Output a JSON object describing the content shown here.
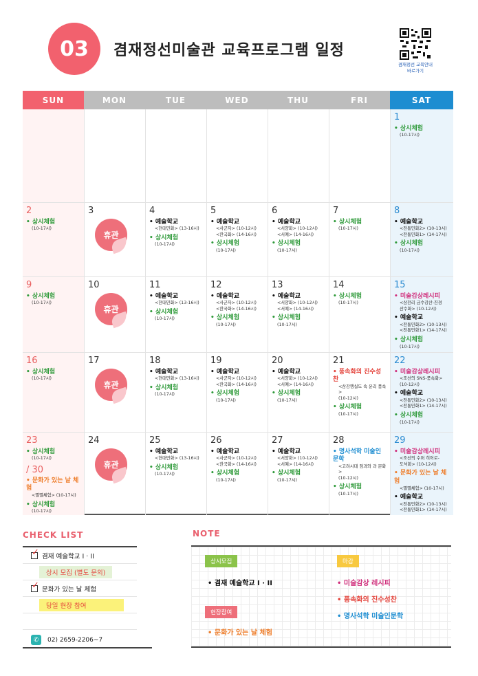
{
  "header": {
    "badge": "03",
    "title": "겸재정선미술관 교육프로그램 일정",
    "qr_caption": [
      "겸재정선 교육안내",
      "바로가기"
    ]
  },
  "colors": {
    "sun": "#f2616e",
    "weekday": "#bdbdbd",
    "sat": "#1d8dd1",
    "closed": "#ee6f7a",
    "check_title": "#e95f6d",
    "tag_green": "#8bc34a",
    "tag_yellow": "#f8c93f",
    "tag_pink": "#ee6f7a"
  },
  "calendar": {
    "days": [
      "SUN",
      "MON",
      "TUE",
      "WED",
      "THU",
      "FRI",
      "SAT"
    ],
    "weeks": [
      [
        {
          "date": ""
        },
        {
          "date": ""
        },
        {
          "date": ""
        },
        {
          "date": ""
        },
        {
          "date": ""
        },
        {
          "date": ""
        },
        {
          "date": "1",
          "events": [
            {
              "c": "green",
              "title": "• 상시체험",
              "lines": [
                "(10-17시)"
              ]
            }
          ]
        }
      ],
      [
        {
          "date": "2",
          "events": [
            {
              "c": "green",
              "title": "• 상시체험",
              "lines": [
                "(10-17시)"
              ]
            }
          ]
        },
        {
          "date": "3",
          "closed": "휴관"
        },
        {
          "date": "4",
          "events": [
            {
              "c": "black",
              "title": "• 예술학교",
              "lines": [
                "<현대민화> (13-16시)"
              ]
            },
            {
              "c": "green",
              "title": "• 상시체험",
              "lines": [
                "(10-17시)"
              ]
            }
          ]
        },
        {
          "date": "5",
          "events": [
            {
              "c": "black",
              "title": "• 예술학교",
              "lines": [
                "<사군자> (10-12시)",
                "<한국화> (14-16시)"
              ]
            },
            {
              "c": "green",
              "title": "• 상시체험",
              "lines": [
                "(10-17시)"
              ]
            }
          ]
        },
        {
          "date": "6",
          "events": [
            {
              "c": "black",
              "title": "• 예술학교",
              "lines": [
                "<서양화> (10-12시)",
                "<서예> (14-16시)"
              ]
            },
            {
              "c": "green",
              "title": "• 상시체험",
              "lines": [
                "(10-17시)"
              ]
            }
          ]
        },
        {
          "date": "7",
          "events": [
            {
              "c": "green",
              "title": "• 상시체험",
              "lines": [
                "(10-17시)"
              ]
            }
          ]
        },
        {
          "date": "8",
          "events": [
            {
              "c": "black",
              "title": "• 예술학교",
              "lines": [
                "<전통민화2> (10-13시)",
                "<전통민화1> (14-17시)"
              ]
            },
            {
              "c": "green",
              "title": "• 상시체험",
              "lines": [
                "(10-17시)"
              ]
            }
          ]
        }
      ],
      [
        {
          "date": "9",
          "events": [
            {
              "c": "green",
              "title": "• 상시체험",
              "lines": [
                "(10-17시)"
              ]
            }
          ]
        },
        {
          "date": "10",
          "closed": "휴관"
        },
        {
          "date": "11",
          "events": [
            {
              "c": "black",
              "title": "• 예술학교",
              "lines": [
                "<현대민화> (13-16시)"
              ]
            },
            {
              "c": "green",
              "title": "• 상시체험",
              "lines": [
                "(10-17시)"
              ]
            }
          ]
        },
        {
          "date": "12",
          "events": [
            {
              "c": "black",
              "title": "• 예술학교",
              "lines": [
                "<사군자> (10-12시)",
                "<한국화> (14-16시)"
              ]
            },
            {
              "c": "green",
              "title": "• 상시체험",
              "lines": [
                "(10-17시)"
              ]
            }
          ]
        },
        {
          "date": "13",
          "events": [
            {
              "c": "black",
              "title": "• 예술학교",
              "lines": [
                "<서양화> (10-12시)",
                "<서예> (14-16시)"
              ]
            },
            {
              "c": "green",
              "title": "• 상시체험",
              "lines": [
                "(10-17시)"
              ]
            }
          ]
        },
        {
          "date": "14",
          "events": [
            {
              "c": "green",
              "title": "• 상시체험",
              "lines": [
                "(10-17시)"
              ]
            }
          ]
        },
        {
          "date": "15",
          "events": [
            {
              "c": "pink",
              "title": "• 미술감상레시피",
              "lines": [
                "<삼천리 금수강산-진경",
                "산수화> (10-12시)"
              ]
            },
            {
              "c": "black",
              "title": "• 예술학교",
              "lines": [
                "<전통민화2> (10-13시)",
                "<전통민화1> (14-17시)"
              ]
            },
            {
              "c": "green",
              "title": "• 상시체험",
              "lines": [
                "(10-17시)"
              ]
            }
          ]
        }
      ],
      [
        {
          "date": "16",
          "events": [
            {
              "c": "green",
              "title": "• 상시체험",
              "lines": [
                "(10-17시)"
              ]
            }
          ]
        },
        {
          "date": "17",
          "closed": "휴관"
        },
        {
          "date": "18",
          "events": [
            {
              "c": "black",
              "title": "• 예술학교",
              "lines": [
                "<현대민화> (13-16시)"
              ]
            },
            {
              "c": "green",
              "title": "• 상시체험",
              "lines": [
                "(10-17시)"
              ]
            }
          ]
        },
        {
          "date": "19",
          "events": [
            {
              "c": "black",
              "title": "• 예술학교",
              "lines": [
                "<사군자> (10-12시)",
                "<한국화> (14-16시)"
              ]
            },
            {
              "c": "green",
              "title": "• 상시체험",
              "lines": [
                "(10-17시)"
              ]
            }
          ]
        },
        {
          "date": "20",
          "events": [
            {
              "c": "black",
              "title": "• 예술학교",
              "lines": [
                "<서양화> (10-12시)",
                "<서예> (14-16시)"
              ]
            },
            {
              "c": "green",
              "title": "• 상시체험",
              "lines": [
                "(10-17시)"
              ]
            }
          ]
        },
        {
          "date": "21",
          "events": [
            {
              "c": "red",
              "title": "• 풍속화의 진수성찬",
              "lines": [
                "<삼강행실도 속 윤리 풍속>",
                "(10-12시)"
              ]
            },
            {
              "c": "green",
              "title": "• 상시체험",
              "lines": [
                "(10-17시)"
              ]
            }
          ]
        },
        {
          "date": "22",
          "events": [
            {
              "c": "pink",
              "title": "• 미술감상레시피",
              "lines": [
                "<조선의 SNS-풍속화>",
                "(10-12시)"
              ]
            },
            {
              "c": "black",
              "title": "• 예술학교",
              "lines": [
                "<전통민화2> (10-13시)",
                "<전통민화1> (14-17시)"
              ]
            },
            {
              "c": "green",
              "title": "• 상시체험",
              "lines": [
                "(10-17시)"
              ]
            }
          ]
        }
      ],
      [
        {
          "date": "23",
          "events": [
            {
              "c": "green",
              "title": "• 상시체험",
              "lines": [
                "(10-17시)"
              ]
            }
          ],
          "extra_date": "/ 30",
          "extra_events": [
            {
              "c": "orange",
              "title": "• 문화가 있는 날 체험",
              "lines": [
                "<별별체험> (10-17시)"
              ]
            },
            {
              "c": "green",
              "title": "• 상시체험",
              "lines": [
                "(10-17시)"
              ]
            }
          ]
        },
        {
          "date": "24",
          "closed": "휴관"
        },
        {
          "date": "25",
          "events": [
            {
              "c": "black",
              "title": "• 예술학교",
              "lines": [
                "<현대민화> (13-16시)"
              ]
            },
            {
              "c": "green",
              "title": "• 상시체험",
              "lines": [
                "(10-17시)"
              ]
            }
          ]
        },
        {
          "date": "26",
          "events": [
            {
              "c": "black",
              "title": "• 예술학교",
              "lines": [
                "<사군자> (10-12시)",
                "<한국화> (14-16시)"
              ]
            },
            {
              "c": "green",
              "title": "• 상시체험",
              "lines": [
                "(10-17시)"
              ]
            }
          ]
        },
        {
          "date": "27",
          "events": [
            {
              "c": "black",
              "title": "• 예술학교",
              "lines": [
                "<서양화> (10-12시)",
                "<서예> (14-16시)"
              ]
            },
            {
              "c": "green",
              "title": "• 상시체험",
              "lines": [
                "(10-17시)"
              ]
            }
          ]
        },
        {
          "date": "28",
          "events": [
            {
              "c": "blue",
              "title": "• 명사석학 미술인문학",
              "lines": [
                "<고려시대 점과와 과 문화>",
                "(10-12시)"
              ]
            },
            {
              "c": "green",
              "title": "• 상시체험",
              "lines": [
                "(10-17시)"
              ]
            }
          ]
        },
        {
          "date": "29",
          "events": [
            {
              "c": "pink",
              "title": "• 미술감상레시피",
              "lines": [
                "<조선의 수퍼 히어로-",
                "도석화> (10-12시)"
              ]
            },
            {
              "c": "orange",
              "title": "• 문화가 있는 날 체험",
              "lines": [
                "<별별체험> (10-17시)"
              ]
            },
            {
              "c": "black",
              "title": "• 예술학교",
              "lines": [
                "<전통민화2> (10-13시)",
                "<전통민화1> (14-17시)"
              ]
            },
            {
              "c": "green",
              "title": "• 상시체험",
              "lines": [
                "(10-17시)"
              ]
            }
          ]
        }
      ]
    ]
  },
  "check_list": {
    "title": "CHECK LIST",
    "item1": "겸재 예술학교 I · II",
    "item1_note": "상시 모집 (별도 문의)",
    "item2": "문화가 있는 날 체험",
    "item2_note": "당일 현장 참여",
    "phone": "02) 2659-2206~7",
    "phone_icon": "phone-icon"
  },
  "note": {
    "title": "NOTE",
    "tag_always": "상시모집",
    "tag_apply": "마감",
    "tag_onsite": "현장참여",
    "school": "• 겸재 예술학교 I · II",
    "recipe": "• 미술감상 레시피",
    "genre": "• 풍속화의 진수성찬",
    "lecture": "• 명사석학 미술인문학",
    "culture": "• 문화가 있는 날 체험"
  }
}
